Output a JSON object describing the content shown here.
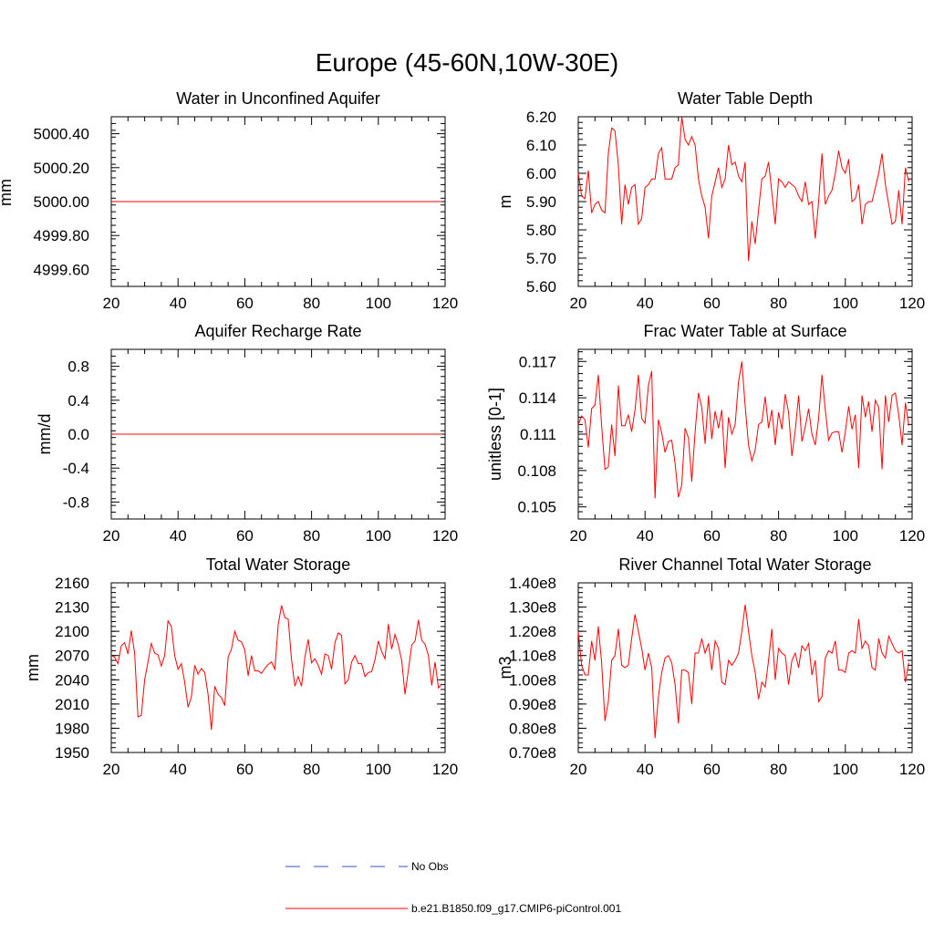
{
  "page_title": "Europe (45-60N,10W-30E)",
  "chart_data": [
    {
      "type": "line",
      "title": "Water in Unconfined Aquifer",
      "xlabel": "",
      "ylabel": "mm",
      "xlim": [
        20,
        120
      ],
      "ylim": [
        4999.5,
        5000.5
      ],
      "xticks": [
        20,
        40,
        60,
        80,
        100,
        120
      ],
      "xtick_labels": [
        "20",
        "40",
        "60",
        "80",
        "100",
        "120"
      ],
      "yticks": [
        4999.6,
        4999.8,
        5000.0,
        5000.2,
        5000.4
      ],
      "ytick_labels": [
        "4999.60",
        "4999.80",
        "5000.00",
        "5000.20",
        "5000.40"
      ],
      "x_start": 20,
      "series": [
        {
          "name": "b.e21.B1850.f09_g17.CMIP6-piControl.001",
          "color": "#ff0000",
          "values": [
            5000,
            5000,
            5000,
            5000,
            5000,
            5000,
            5000,
            5000,
            5000,
            5000,
            5000,
            5000,
            5000,
            5000,
            5000,
            5000,
            5000,
            5000,
            5000,
            5000,
            5000,
            5000,
            5000,
            5000,
            5000,
            5000,
            5000,
            5000,
            5000,
            5000,
            5000,
            5000,
            5000,
            5000,
            5000,
            5000,
            5000,
            5000,
            5000,
            5000,
            5000,
            5000,
            5000,
            5000,
            5000,
            5000,
            5000,
            5000,
            5000,
            5000,
            5000,
            5000,
            5000,
            5000,
            5000,
            5000,
            5000,
            5000,
            5000,
            5000,
            5000,
            5000,
            5000,
            5000,
            5000,
            5000,
            5000,
            5000,
            5000,
            5000,
            5000,
            5000,
            5000,
            5000,
            5000,
            5000,
            5000,
            5000,
            5000,
            5000,
            5000,
            5000,
            5000,
            5000,
            5000,
            5000,
            5000,
            5000,
            5000,
            5000,
            5000,
            5000,
            5000,
            5000,
            5000,
            5000,
            5000,
            5000,
            5000,
            5000
          ]
        }
      ]
    },
    {
      "type": "line",
      "title": "Water Table Depth",
      "xlabel": "",
      "ylabel": "m",
      "xlim": [
        20,
        120
      ],
      "ylim": [
        5.6,
        6.2
      ],
      "xticks": [
        20,
        40,
        60,
        80,
        100,
        120
      ],
      "xtick_labels": [
        "20",
        "40",
        "60",
        "80",
        "100",
        "120"
      ],
      "yticks": [
        5.6,
        5.7,
        5.8,
        5.9,
        6.0,
        6.1,
        6.2
      ],
      "ytick_labels": [
        "5.60",
        "5.70",
        "5.80",
        "5.90",
        "6.00",
        "6.10",
        "6.20"
      ],
      "x_start": 20,
      "series": [
        {
          "name": "b.e21.B1850.f09_g17.CMIP6-piControl.001",
          "color": "#ff0000",
          "values": [
            6.0,
            5.92,
            5.91,
            6.01,
            5.86,
            5.89,
            5.9,
            5.87,
            5.86,
            6.07,
            6.16,
            6.15,
            6.03,
            5.82,
            5.96,
            5.89,
            5.95,
            5.96,
            5.82,
            5.84,
            5.95,
            5.96,
            5.98,
            5.98,
            6.07,
            6.09,
            5.98,
            5.98,
            5.98,
            6.02,
            6.03,
            6.2,
            6.12,
            6.1,
            6.13,
            6.1,
            5.98,
            5.92,
            5.88,
            5.77,
            5.92,
            5.97,
            6.02,
            5.95,
            5.98,
            6.1,
            6.03,
            6.04,
            5.99,
            5.97,
            6.04,
            5.69,
            5.83,
            5.75,
            5.87,
            5.98,
            5.99,
            6.04,
            5.93,
            5.82,
            5.98,
            5.97,
            5.95,
            5.97,
            5.96,
            5.95,
            5.92,
            5.9,
            5.97,
            5.89,
            5.9,
            5.77,
            5.9,
            6.07,
            5.89,
            5.92,
            5.94,
            6.0,
            6.08,
            6.02,
            6.0,
            6.05,
            5.9,
            5.91,
            5.96,
            5.82,
            5.89,
            5.9,
            5.9,
            5.95,
            6.0,
            6.07,
            5.96,
            5.89,
            5.82,
            5.83,
            5.94,
            5.82,
            6.02,
            5.97
          ]
        }
      ]
    },
    {
      "type": "line",
      "title": "Aquifer Recharge Rate",
      "xlabel": "",
      "ylabel": "mm/d",
      "xlim": [
        20,
        120
      ],
      "ylim": [
        -1.0,
        1.0
      ],
      "xticks": [
        20,
        40,
        60,
        80,
        100,
        120
      ],
      "xtick_labels": [
        "20",
        "40",
        "60",
        "80",
        "100",
        "120"
      ],
      "yticks": [
        -0.8,
        -0.4,
        0.0,
        0.4,
        0.8
      ],
      "ytick_labels": [
        "-0.8",
        "-0.4",
        "0.0",
        "0.4",
        "0.8"
      ],
      "x_start": 20,
      "series": [
        {
          "name": "b.e21.B1850.f09_g17.CMIP6-piControl.001",
          "color": "#ff0000",
          "values": [
            0,
            0,
            0,
            0,
            0,
            0,
            0,
            0,
            0,
            0,
            0,
            0,
            0,
            0,
            0,
            0,
            0,
            0,
            0,
            0,
            0,
            0,
            0,
            0,
            0,
            0,
            0,
            0,
            0,
            0,
            0,
            0,
            0,
            0,
            0,
            0,
            0,
            0,
            0,
            0,
            0,
            0,
            0,
            0,
            0,
            0,
            0,
            0,
            0,
            0,
            0,
            0,
            0,
            0,
            0,
            0,
            0,
            0,
            0,
            0,
            0,
            0,
            0,
            0,
            0,
            0,
            0,
            0,
            0,
            0,
            0,
            0,
            0,
            0,
            0,
            0,
            0,
            0,
            0,
            0,
            0,
            0,
            0,
            0,
            0,
            0,
            0,
            0,
            0,
            0,
            0,
            0,
            0,
            0,
            0,
            0,
            0,
            0,
            0,
            0
          ]
        }
      ]
    },
    {
      "type": "line",
      "title": "Frac Water Table at Surface",
      "xlabel": "",
      "ylabel": "unitless [0-1]",
      "xlim": [
        20,
        120
      ],
      "ylim": [
        0.104,
        0.118
      ],
      "xticks": [
        20,
        40,
        60,
        80,
        100,
        120
      ],
      "xtick_labels": [
        "20",
        "40",
        "60",
        "80",
        "100",
        "120"
      ],
      "yticks": [
        0.105,
        0.108,
        0.111,
        0.114,
        0.117
      ],
      "ytick_labels": [
        "0.105",
        "0.108",
        "0.111",
        "0.114",
        "0.117"
      ],
      "x_start": 20,
      "series": [
        {
          "name": "b.e21.B1850.f09_g17.CMIP6-piControl.001",
          "color": "#ff0000",
          "values": [
            0.1118,
            0.1125,
            0.1122,
            0.1099,
            0.1131,
            0.1134,
            0.1159,
            0.1117,
            0.1081,
            0.1083,
            0.1118,
            0.1092,
            0.115,
            0.1117,
            0.1117,
            0.1126,
            0.1112,
            0.113,
            0.1159,
            0.1123,
            0.1119,
            0.115,
            0.1162,
            0.1057,
            0.1122,
            0.1111,
            0.1095,
            0.1104,
            0.1105,
            0.1086,
            0.1058,
            0.1068,
            0.1115,
            0.1107,
            0.1071,
            0.1112,
            0.1144,
            0.1132,
            0.1102,
            0.1142,
            0.1106,
            0.1129,
            0.1115,
            0.113,
            0.1082,
            0.1124,
            0.111,
            0.1118,
            0.1153,
            0.117,
            0.1133,
            0.1101,
            0.1088,
            0.1097,
            0.1118,
            0.112,
            0.1141,
            0.1115,
            0.113,
            0.1101,
            0.1128,
            0.1114,
            0.1143,
            0.1128,
            0.1092,
            0.1113,
            0.1142,
            0.1104,
            0.1116,
            0.1131,
            0.111,
            0.1101,
            0.1123,
            0.1159,
            0.113,
            0.1105,
            0.1111,
            0.1112,
            0.1112,
            0.1095,
            0.1112,
            0.1133,
            0.1114,
            0.1126,
            0.1082,
            0.1142,
            0.1124,
            0.1137,
            0.1112,
            0.1138,
            0.1132,
            0.1081,
            0.1142,
            0.112,
            0.1142,
            0.1144,
            0.1126,
            0.1101,
            0.1136,
            0.1117
          ]
        }
      ]
    },
    {
      "type": "line",
      "title": "Total Water Storage",
      "xlabel": "",
      "ylabel": "mm",
      "xlim": [
        20,
        120
      ],
      "ylim": [
        1950,
        2160
      ],
      "xticks": [
        20,
        40,
        60,
        80,
        100,
        120
      ],
      "xtick_labels": [
        "20",
        "40",
        "60",
        "80",
        "100",
        "120"
      ],
      "yticks": [
        1950,
        1980,
        2010,
        2040,
        2070,
        2100,
        2130,
        2160
      ],
      "ytick_labels": [
        "1950",
        "1980",
        "2010",
        "2040",
        "2070",
        "2100",
        "2130",
        "2160"
      ],
      "x_start": 20,
      "series": [
        {
          "name": "b.e21.B1850.f09_g17.CMIP6-piControl.001",
          "color": "#ff0000",
          "values": [
            2070,
            2068,
            2060,
            2082,
            2086,
            2072,
            2101,
            2073,
            1994,
            1996,
            2040,
            2062,
            2085,
            2073,
            2071,
            2057,
            2070,
            2113,
            2106,
            2070,
            2053,
            2060,
            2037,
            2006,
            2019,
            2058,
            2047,
            2054,
            2049,
            2022,
            1978,
            2032,
            2022,
            2018,
            2008,
            2068,
            2078,
            2100,
            2089,
            2087,
            2077,
            2045,
            2070,
            2051,
            2051,
            2048,
            2054,
            2059,
            2062,
            2053,
            2108,
            2132,
            2117,
            2115,
            2065,
            2032,
            2044,
            2032,
            2068,
            2090,
            2061,
            2066,
            2058,
            2047,
            2072,
            2070,
            2053,
            2086,
            2098,
            2095,
            2035,
            2040,
            2062,
            2070,
            2060,
            2060,
            2044,
            2049,
            2050,
            2065,
            2088,
            2075,
            2066,
            2109,
            2078,
            2096,
            2083,
            2064,
            2022,
            2052,
            2083,
            2088,
            2114,
            2089,
            2084,
            2070,
            2033,
            2062,
            2030,
            2035
          ]
        }
      ]
    },
    {
      "type": "line",
      "title": "River Channel Total Water Storage",
      "xlabel": "",
      "ylabel": "m3",
      "xlim": [
        20,
        120
      ],
      "ylim": [
        0.7,
        1.4
      ],
      "xticks": [
        20,
        40,
        60,
        80,
        100,
        120
      ],
      "xtick_labels": [
        "20",
        "40",
        "60",
        "80",
        "100",
        "120"
      ],
      "yticks": [
        0.7,
        0.8,
        0.9,
        1.0,
        1.1,
        1.2,
        1.3,
        1.4
      ],
      "ytick_labels": [
        "0.70e8",
        "0.80e8",
        "0.90e8",
        "1.00e8",
        "1.10e8",
        "1.20e8",
        "1.30e8",
        "1.40e8"
      ],
      "y_scale_note": "values in units of 1e8 m3",
      "x_start": 20,
      "series": [
        {
          "name": "b.e21.B1850.f09_g17.CMIP6-piControl.001",
          "color": "#ff0000",
          "values": [
            1.2,
            1.06,
            1.02,
            1.02,
            1.16,
            1.08,
            1.22,
            1.07,
            0.83,
            0.91,
            1.08,
            1.1,
            1.21,
            1.06,
            1.05,
            1.06,
            1.17,
            1.27,
            1.2,
            1.13,
            1.04,
            1.11,
            1.05,
            0.76,
            0.93,
            1.03,
            1.09,
            1.1,
            1.07,
            0.98,
            0.82,
            1.04,
            1.04,
            1.03,
            0.9,
            1.11,
            1.11,
            1.17,
            1.11,
            1.15,
            1.04,
            1.16,
            1.13,
            0.99,
            0.98,
            1.08,
            1.06,
            1.08,
            1.11,
            1.2,
            1.31,
            1.2,
            1.1,
            1.03,
            0.92,
            0.99,
            0.97,
            1.08,
            1.21,
            1.0,
            1.13,
            1.11,
            1.1,
            0.98,
            1.08,
            1.11,
            1.05,
            1.14,
            1.12,
            1.15,
            1.02,
            1.08,
            0.91,
            0.93,
            1.09,
            1.12,
            1.11,
            1.16,
            1.04,
            1.04,
            1.03,
            1.11,
            1.12,
            1.11,
            1.25,
            1.13,
            1.16,
            1.14,
            1.05,
            1.04,
            1.17,
            1.11,
            1.09,
            1.18,
            1.15,
            1.12,
            1.11,
            1.12,
            0.99,
            1.07
          ]
        }
      ]
    }
  ],
  "legend": {
    "items": [
      {
        "label": "No Obs",
        "color": "#3a4ec8",
        "style": "dashed"
      },
      {
        "label": "b.e21.B1850.f09_g17.CMIP6-piControl.001",
        "color": "#ff0000",
        "style": "solid"
      }
    ]
  }
}
